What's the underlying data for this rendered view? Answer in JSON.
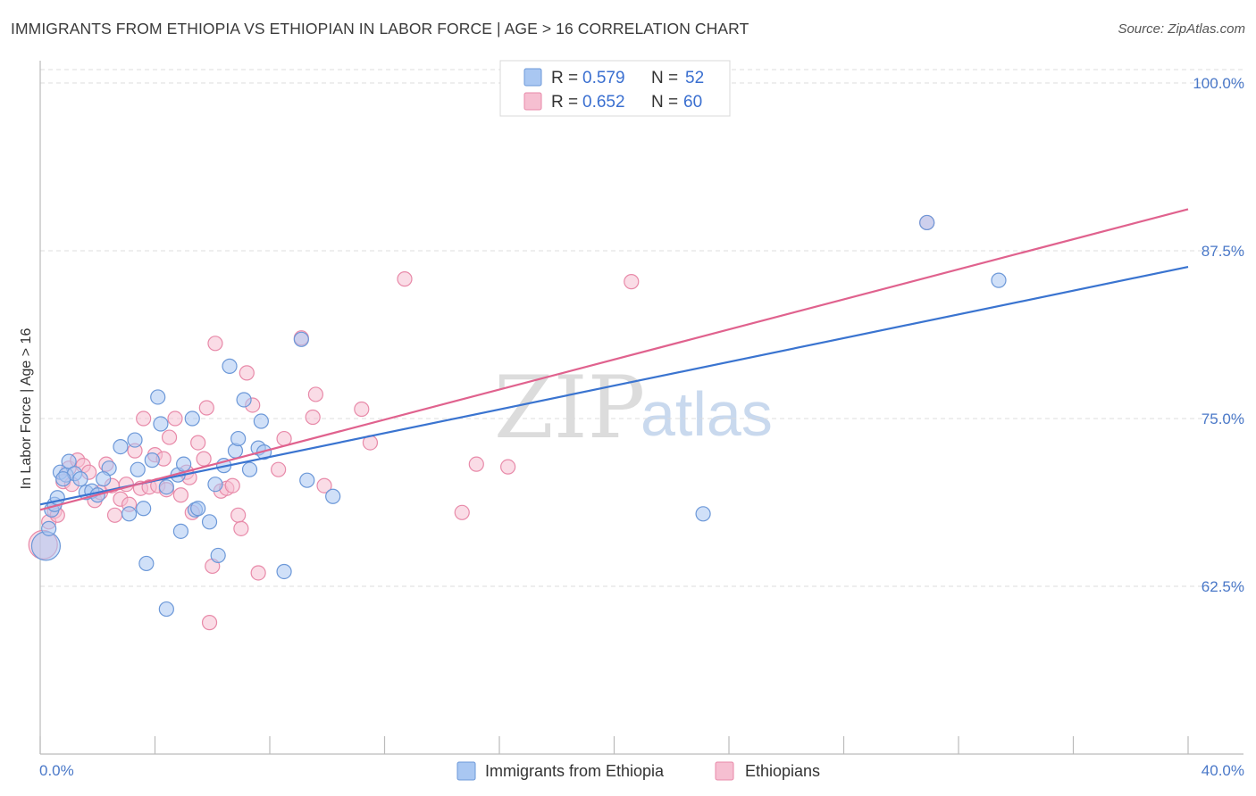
{
  "title": "IMMIGRANTS FROM ETHIOPIA VS ETHIOPIAN IN LABOR FORCE | AGE > 16 CORRELATION CHART",
  "source": "Source: ZipAtlas.com",
  "watermark": {
    "zip": "ZIP",
    "atlas": "atlas"
  },
  "colors": {
    "blue_fill": "#a9c7f2",
    "blue_stroke": "#6c98d8",
    "blue_line": "#3a74d0",
    "pink_fill": "#f6bfd1",
    "pink_stroke": "#e88aa9",
    "pink_line": "#e0628e",
    "axis_text": "#4a78c8",
    "grid": "#dcdcdc"
  },
  "chart_data": {
    "type": "scatter",
    "title": "IMMIGRANTS FROM ETHIOPIA VS ETHIOPIAN IN LABOR FORCE | AGE > 16 CORRELATION CHART",
    "xlabel": "",
    "ylabel": "In Labor Force | Age > 16",
    "xlim": [
      0,
      40
    ],
    "ylim": [
      50,
      101
    ],
    "x_tick_labels": [
      "0.0%",
      "40.0%"
    ],
    "y_ticks": [
      62.5,
      75.0,
      87.5,
      100.0
    ],
    "y_tick_labels": [
      "62.5%",
      "75.0%",
      "87.5%",
      "100.0%"
    ],
    "legend": [
      {
        "r_label": "R =",
        "r_value": "0.579",
        "n_label": "N =",
        "n_value": "52"
      },
      {
        "r_label": "R =",
        "r_value": "0.652",
        "n_label": "N =",
        "n_value": "60"
      }
    ],
    "series": [
      {
        "name": "Immigrants from Ethiopia",
        "color": "blue",
        "trend": {
          "x0": 0,
          "y0": 68.6,
          "x1": 40,
          "y1": 86.3
        },
        "points": [
          [
            0.2,
            65.5
          ],
          [
            0.3,
            66.8
          ],
          [
            0.4,
            68.2
          ],
          [
            0.5,
            68.6
          ],
          [
            0.6,
            69.1
          ],
          [
            0.7,
            71.0
          ],
          [
            0.9,
            70.8
          ],
          [
            1.0,
            71.8
          ],
          [
            1.2,
            70.9
          ],
          [
            1.4,
            70.5
          ],
          [
            1.6,
            69.5
          ],
          [
            1.8,
            69.6
          ],
          [
            2.0,
            69.3
          ],
          [
            2.4,
            71.3
          ],
          [
            2.8,
            72.9
          ],
          [
            3.1,
            67.9
          ],
          [
            3.3,
            73.4
          ],
          [
            3.4,
            71.2
          ],
          [
            3.6,
            68.3
          ],
          [
            3.7,
            64.2
          ],
          [
            3.9,
            71.9
          ],
          [
            4.1,
            76.6
          ],
          [
            4.2,
            74.6
          ],
          [
            4.4,
            69.9
          ],
          [
            4.4,
            60.8
          ],
          [
            4.8,
            70.8
          ],
          [
            4.9,
            66.6
          ],
          [
            5.0,
            71.6
          ],
          [
            5.3,
            75.0
          ],
          [
            5.4,
            68.2
          ],
          [
            5.5,
            68.3
          ],
          [
            5.9,
            67.3
          ],
          [
            6.1,
            70.1
          ],
          [
            6.2,
            64.8
          ],
          [
            6.4,
            71.5
          ],
          [
            6.6,
            78.9
          ],
          [
            6.8,
            72.6
          ],
          [
            6.9,
            73.5
          ],
          [
            7.1,
            76.4
          ],
          [
            7.3,
            71.2
          ],
          [
            7.6,
            72.8
          ],
          [
            7.7,
            74.8
          ],
          [
            7.8,
            72.5
          ],
          [
            8.5,
            63.6
          ],
          [
            9.1,
            80.9
          ],
          [
            9.3,
            70.4
          ],
          [
            10.2,
            69.2
          ],
          [
            23.1,
            67.9
          ],
          [
            30.9,
            89.6
          ],
          [
            33.4,
            85.3
          ],
          [
            0.8,
            70.5
          ],
          [
            2.2,
            70.5
          ]
        ]
      },
      {
        "name": "Ethiopians",
        "color": "pink",
        "trend": {
          "x0": 0,
          "y0": 68.2,
          "x1": 40,
          "y1": 90.6
        },
        "points": [
          [
            0.1,
            65.6
          ],
          [
            0.3,
            67.3
          ],
          [
            0.5,
            68.1
          ],
          [
            0.6,
            67.8
          ],
          [
            0.8,
            70.3
          ],
          [
            1.0,
            71.3
          ],
          [
            1.1,
            70.1
          ],
          [
            1.3,
            71.9
          ],
          [
            1.5,
            71.5
          ],
          [
            1.7,
            71.0
          ],
          [
            1.9,
            68.9
          ],
          [
            2.1,
            69.5
          ],
          [
            2.3,
            71.6
          ],
          [
            2.5,
            70.0
          ],
          [
            2.6,
            67.8
          ],
          [
            2.8,
            69.0
          ],
          [
            3.0,
            70.1
          ],
          [
            3.1,
            68.6
          ],
          [
            3.3,
            72.6
          ],
          [
            3.5,
            69.8
          ],
          [
            3.6,
            75.0
          ],
          [
            3.8,
            69.9
          ],
          [
            4.0,
            72.3
          ],
          [
            4.1,
            70.0
          ],
          [
            4.3,
            72.0
          ],
          [
            4.4,
            69.7
          ],
          [
            4.5,
            73.6
          ],
          [
            4.7,
            75.0
          ],
          [
            4.9,
            69.3
          ],
          [
            5.1,
            71.0
          ],
          [
            5.2,
            70.6
          ],
          [
            5.3,
            68.0
          ],
          [
            5.5,
            73.2
          ],
          [
            5.7,
            72.0
          ],
          [
            5.8,
            75.8
          ],
          [
            6.0,
            64.0
          ],
          [
            6.1,
            80.6
          ],
          [
            6.3,
            69.6
          ],
          [
            6.5,
            69.8
          ],
          [
            6.7,
            70.0
          ],
          [
            6.9,
            67.8
          ],
          [
            7.0,
            66.8
          ],
          [
            7.2,
            78.4
          ],
          [
            7.4,
            76.0
          ],
          [
            7.6,
            63.5
          ],
          [
            8.3,
            71.2
          ],
          [
            8.5,
            73.5
          ],
          [
            9.1,
            81.0
          ],
          [
            9.5,
            75.1
          ],
          [
            9.6,
            76.8
          ],
          [
            9.9,
            70.0
          ],
          [
            11.2,
            75.7
          ],
          [
            11.5,
            73.2
          ],
          [
            12.7,
            85.4
          ],
          [
            14.7,
            68.0
          ],
          [
            15.2,
            71.6
          ],
          [
            16.3,
            71.4
          ],
          [
            20.6,
            85.2
          ],
          [
            30.9,
            89.6
          ],
          [
            5.9,
            59.8
          ]
        ]
      }
    ]
  },
  "bottom_legend": [
    "Immigrants from Ethiopia",
    "Ethiopians"
  ]
}
